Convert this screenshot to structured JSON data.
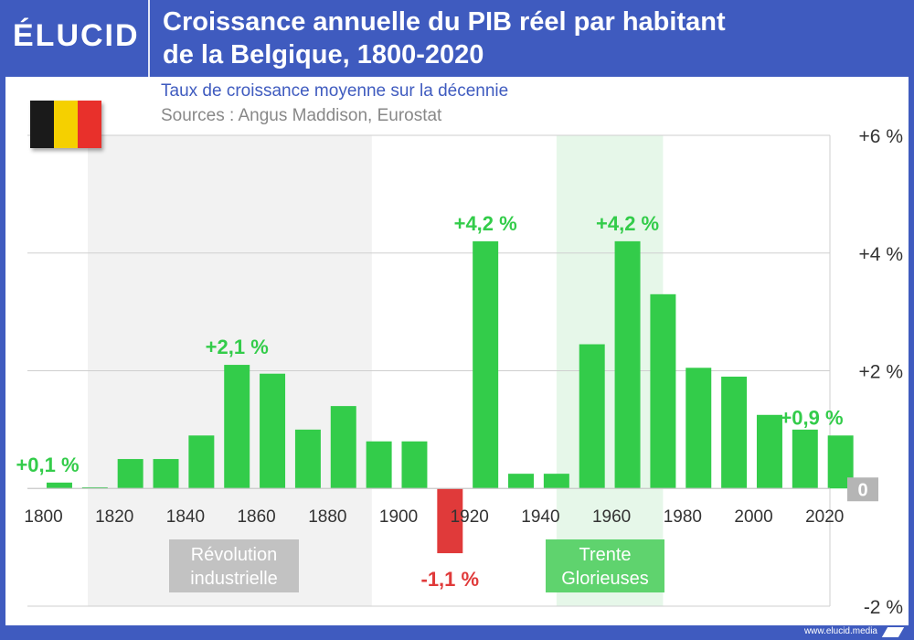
{
  "header": {
    "logo_text": "ÉLUCID",
    "title_line1": "Croissance annuelle du PIB réel par habitant",
    "title_line2": "de la Belgique, 1800-2020"
  },
  "subtitle": "Taux de croissance moyenne sur la décennie",
  "sources": "Sources : Angus Maddison, Eurostat",
  "footer": {
    "url": "www.elucid.media"
  },
  "flag": {
    "colors": [
      "#1a1a1a",
      "#f5d000",
      "#e8302b"
    ]
  },
  "colors": {
    "positive": "#33cc4a",
    "negative": "#e03a3a",
    "grid": "#cfcfcf",
    "band_revolution": "#f2f2f2",
    "band_trente": "#e6f7e9",
    "label_box_revolution": "#c2c2c2",
    "label_box_trente": "#5fd36e"
  },
  "chart_data": {
    "type": "bar",
    "title": "Croissance annuelle du PIB réel par habitant de la Belgique, 1800-2020",
    "subtitle": "Taux de croissance moyenne sur la décennie",
    "xlabel": "",
    "ylabel": "",
    "ylim": [
      -2,
      6
    ],
    "x_range": [
      1796,
      2022
    ],
    "y_ticks": [
      {
        "value": 6,
        "label": "+6 %"
      },
      {
        "value": 4,
        "label": "+4 %"
      },
      {
        "value": 2,
        "label": "+2 %"
      },
      {
        "value": 0,
        "label": "0"
      },
      {
        "value": -2,
        "label": "-2 %"
      }
    ],
    "x_ticks": [
      1800,
      1820,
      1840,
      1860,
      1880,
      1900,
      1920,
      1940,
      1960,
      1980,
      2000,
      2020
    ],
    "decades": [
      1800,
      1810,
      1820,
      1830,
      1840,
      1850,
      1860,
      1870,
      1880,
      1890,
      1900,
      1910,
      1920,
      1930,
      1940,
      1950,
      1960,
      1970,
      1980,
      1990,
      2000,
      2010,
      2020
    ],
    "values": [
      0.1,
      0.02,
      0.5,
      0.5,
      0.9,
      2.1,
      1.95,
      1.0,
      1.4,
      0.8,
      0.8,
      -1.1,
      4.2,
      0.25,
      0.25,
      2.45,
      4.2,
      3.3,
      2.05,
      1.9,
      1.25,
      1.0,
      0.9
    ],
    "annotations": [
      {
        "decade": 1800,
        "text": "+0,1 %"
      },
      {
        "decade": 1850,
        "text": "+2,1 %"
      },
      {
        "decade": 1910,
        "text": "-1,1 %"
      },
      {
        "decade": 1920,
        "text": "+4,2 %"
      },
      {
        "decade": 1960,
        "text": "+4,2 %"
      },
      {
        "decade": 2020,
        "text": "+0,9 %"
      }
    ],
    "bands": [
      {
        "name": "Révolution industrielle",
        "from": 1813,
        "to": 1893,
        "lines": [
          "Révolution",
          "industrielle"
        ]
      },
      {
        "name": "Trente Glorieuses",
        "from": 1945,
        "to": 1975,
        "lines": [
          "Trente",
          "Glorieuses"
        ]
      }
    ]
  }
}
